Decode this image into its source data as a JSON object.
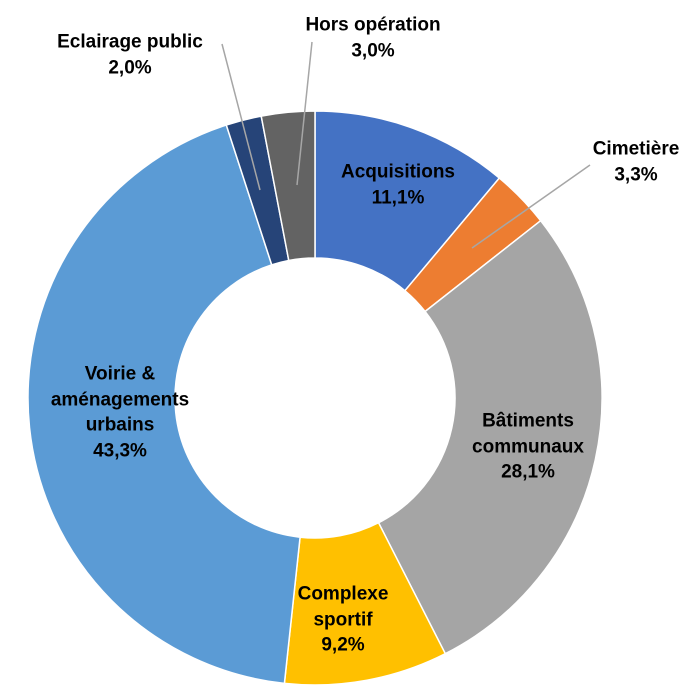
{
  "chart_data": {
    "type": "donut",
    "categories": [
      "Acquisitions",
      "Cimetière",
      "Bâtiments communaux",
      "Complexe sportif",
      "Voirie & aménagements urbains",
      "Eclairage public",
      "Hors opération"
    ],
    "values": [
      11.1,
      3.3,
      28.1,
      9.2,
      43.3,
      2.0,
      3.0
    ],
    "value_labels": [
      "11,1%",
      "3,3%",
      "28,1%",
      "9,2%",
      "43,3%",
      "2,0%",
      "3,0%"
    ],
    "colors": [
      "#4472c4",
      "#ed7d31",
      "#a5a5a5",
      "#ffc000",
      "#5b9bd5",
      "#264478",
      "#636363"
    ]
  }
}
